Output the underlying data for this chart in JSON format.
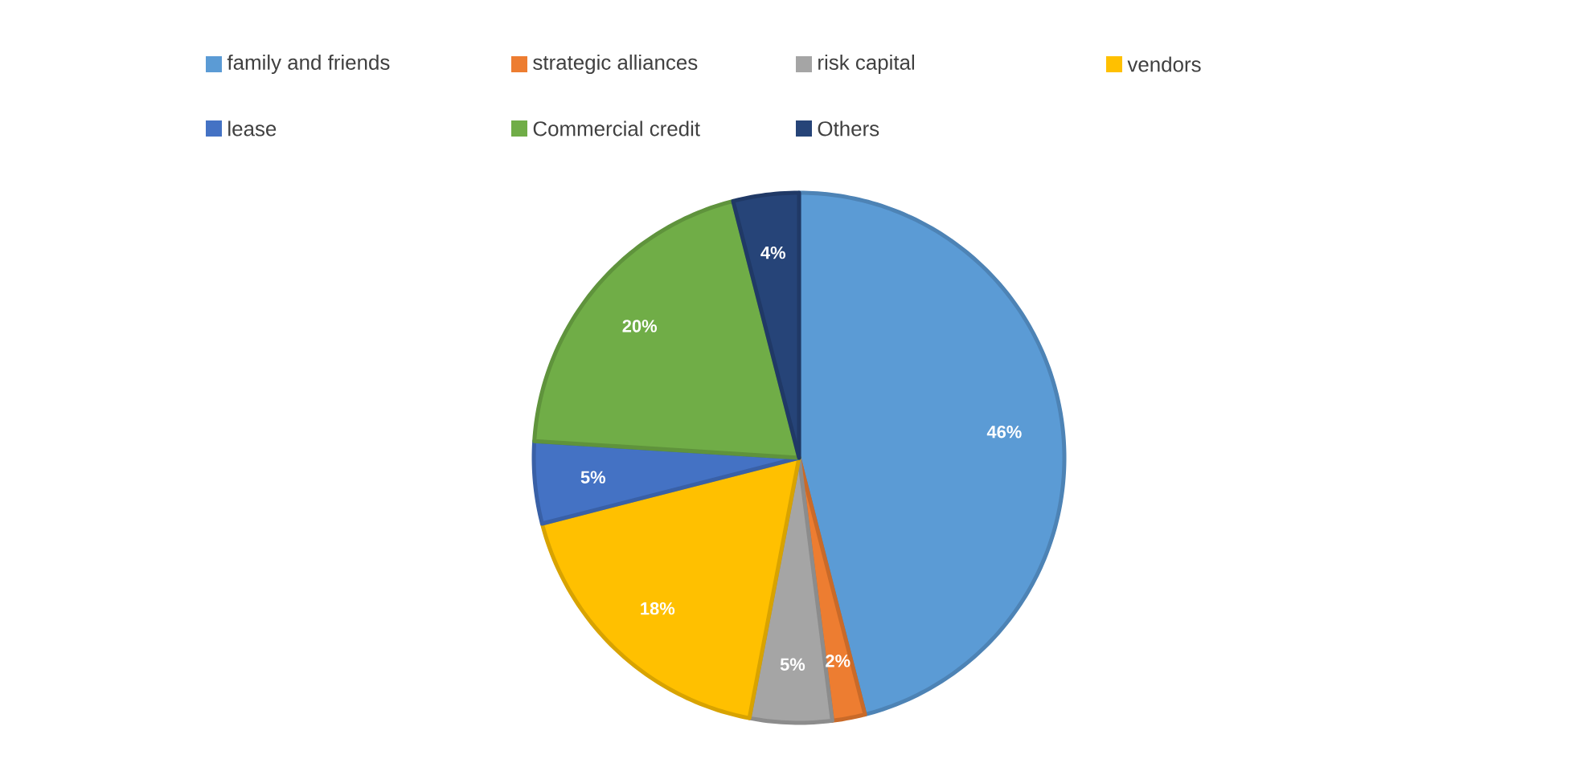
{
  "chart_data": {
    "type": "pie",
    "categories": [
      "family and friends",
      "strategic alliances",
      "risk capital",
      "vendors",
      "lease",
      "Commercial credit",
      "Others"
    ],
    "values": [
      46,
      2,
      5,
      18,
      5,
      20,
      4
    ],
    "value_labels": [
      "46%",
      "2%",
      "5%",
      "18%",
      "5%",
      "20%",
      "4%"
    ],
    "colors": [
      "#5b9bd5",
      "#ed7d31",
      "#a5a5a5",
      "#ffc000",
      "#4472c4",
      "#70ad47",
      "#264478"
    ],
    "legend": "top"
  }
}
